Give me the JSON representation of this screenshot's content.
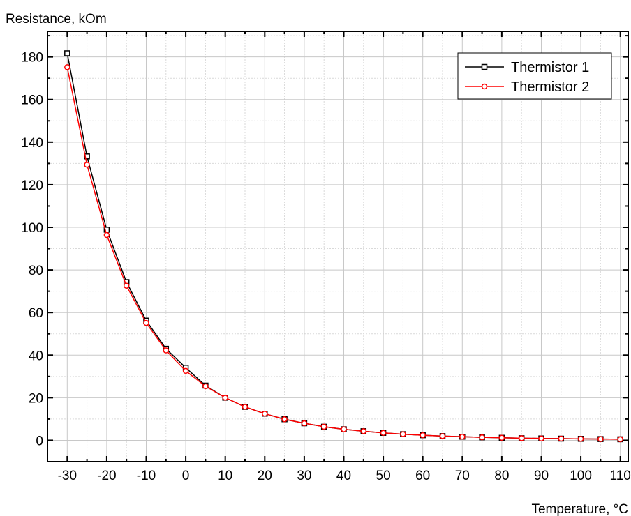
{
  "chart_data": {
    "type": "line",
    "title": "",
    "xlabel": "Temperature, °C",
    "ylabel": "Resistance, kOm",
    "xlim": [
      -35,
      112
    ],
    "ylim": [
      -10,
      192
    ],
    "x_ticks": [
      -30,
      -20,
      -10,
      0,
      10,
      20,
      30,
      40,
      50,
      60,
      70,
      80,
      90,
      100,
      110
    ],
    "y_ticks": [
      0,
      20,
      40,
      60,
      80,
      100,
      120,
      140,
      160,
      180
    ],
    "x_ticks_labels": [
      "-30",
      "-20",
      "-10",
      "0",
      "10",
      "20",
      "30",
      "40",
      "50",
      "60",
      "70",
      "80",
      "90",
      "100",
      "110"
    ],
    "y_ticks_labels": [
      "0",
      "20",
      "40",
      "60",
      "80",
      "100",
      "120",
      "140",
      "160",
      "180"
    ],
    "grid": true,
    "legend_position": "top-right",
    "x": [
      -30,
      -25,
      -20,
      -15,
      -10,
      -5,
      0,
      5,
      10,
      15,
      20,
      25,
      30,
      35,
      40,
      45,
      50,
      55,
      60,
      65,
      70,
      75,
      80,
      85,
      90,
      95,
      100,
      105,
      110
    ],
    "series": [
      {
        "name": "Thermistor 1",
        "color": "#000000",
        "marker": "square",
        "values": [
          181.7,
          133.3,
          98.9,
          74.3,
          56.2,
          43.0,
          34.1,
          25.7,
          20.0,
          15.7,
          12.5,
          9.9,
          8.0,
          6.4,
          5.2,
          4.3,
          3.5,
          2.9,
          2.4,
          2.0,
          1.7,
          1.4,
          1.2,
          1.0,
          0.9,
          0.8,
          0.7,
          0.6,
          0.5
        ]
      },
      {
        "name": "Thermistor 2",
        "color": "#ff0000",
        "marker": "circle",
        "values": [
          175.2,
          129.4,
          96.4,
          72.6,
          55.1,
          42.2,
          32.6,
          25.4,
          20.0,
          15.7,
          12.5,
          9.9,
          8.0,
          6.4,
          5.2,
          4.3,
          3.5,
          2.9,
          2.4,
          2.0,
          1.7,
          1.4,
          1.2,
          1.0,
          0.9,
          0.8,
          0.7,
          0.6,
          0.5
        ]
      }
    ]
  }
}
